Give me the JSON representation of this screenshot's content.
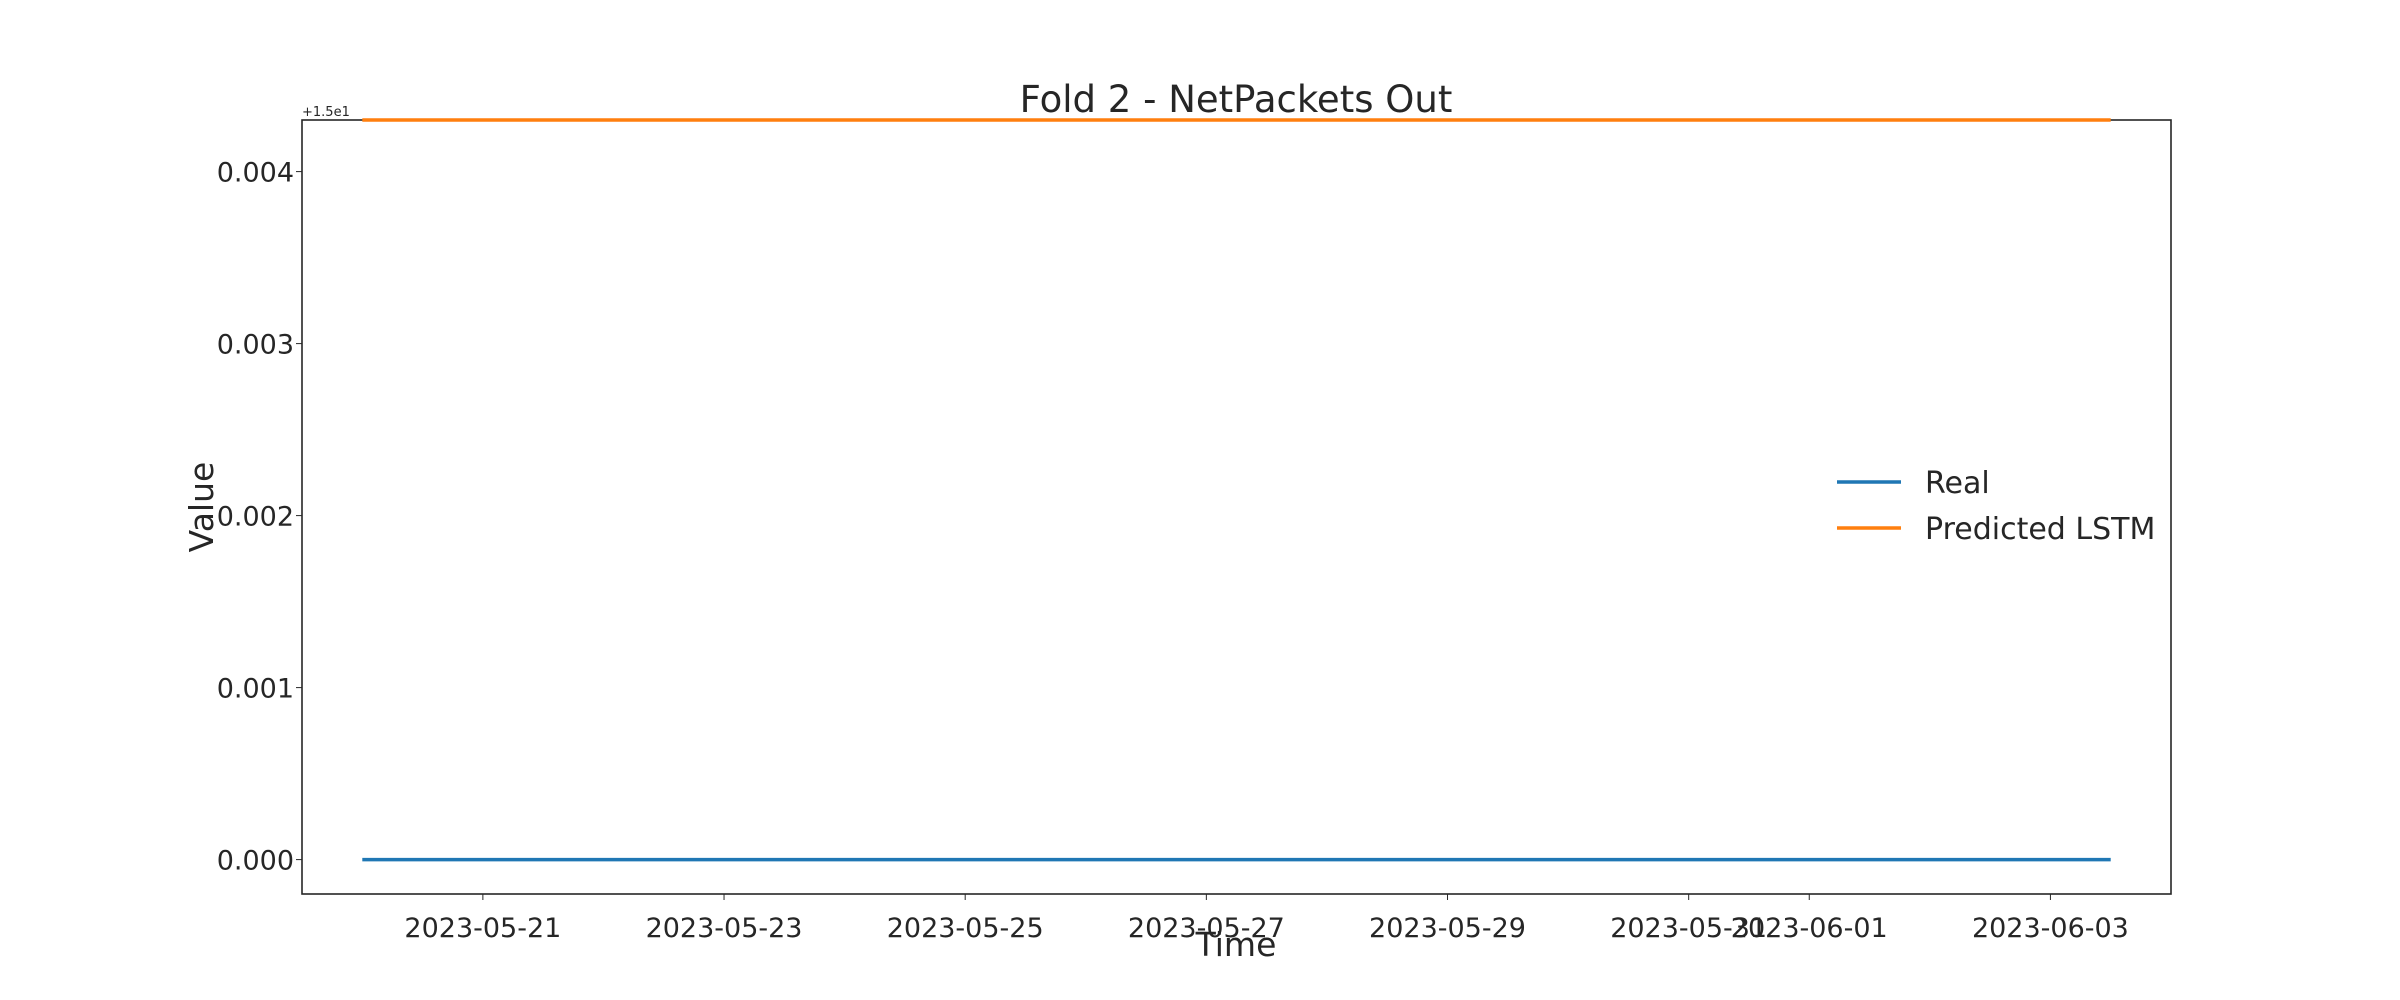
{
  "chart_data": {
    "type": "line",
    "title": "Fold 2 - NetPackets Out",
    "xlabel": "Time",
    "ylabel": "Value",
    "y_offset_label": "+1.5e1",
    "y_offset_value": 15,
    "x_range": [
      "2023-05-19T12:00",
      "2023-06-04T00:00"
    ],
    "ylim": [
      -0.0002,
      0.0043
    ],
    "grid": false,
    "legend_position": "center-right",
    "x_ticks": [
      {
        "date": "2023-05-21",
        "label": "2023-05-21"
      },
      {
        "date": "2023-05-23",
        "label": "2023-05-23"
      },
      {
        "date": "2023-05-25",
        "label": "2023-05-25"
      },
      {
        "date": "2023-05-27",
        "label": "2023-05-27"
      },
      {
        "date": "2023-05-29",
        "label": "2023-05-29"
      },
      {
        "date": "2023-05-31",
        "label": "2023-05-31"
      },
      {
        "date": "2023-06-01",
        "label": "2023-06-01"
      },
      {
        "date": "2023-06-03",
        "label": "2023-06-03"
      }
    ],
    "y_ticks": [
      {
        "value": 0.0,
        "label": "0.000"
      },
      {
        "value": 0.001,
        "label": "0.001"
      },
      {
        "value": 0.002,
        "label": "0.002"
      },
      {
        "value": 0.003,
        "label": "0.003"
      },
      {
        "value": 0.004,
        "label": "0.004"
      }
    ],
    "series": [
      {
        "name": "Real",
        "color": "#1f77b4",
        "x": [
          "2023-05-20",
          "2023-06-03T12:00"
        ],
        "y": [
          0.0,
          0.0
        ]
      },
      {
        "name": "Predicted LSTM",
        "color": "#ff7f0e",
        "x": [
          "2023-05-20",
          "2023-06-03T12:00"
        ],
        "y": [
          0.0043,
          0.0043
        ]
      }
    ]
  }
}
